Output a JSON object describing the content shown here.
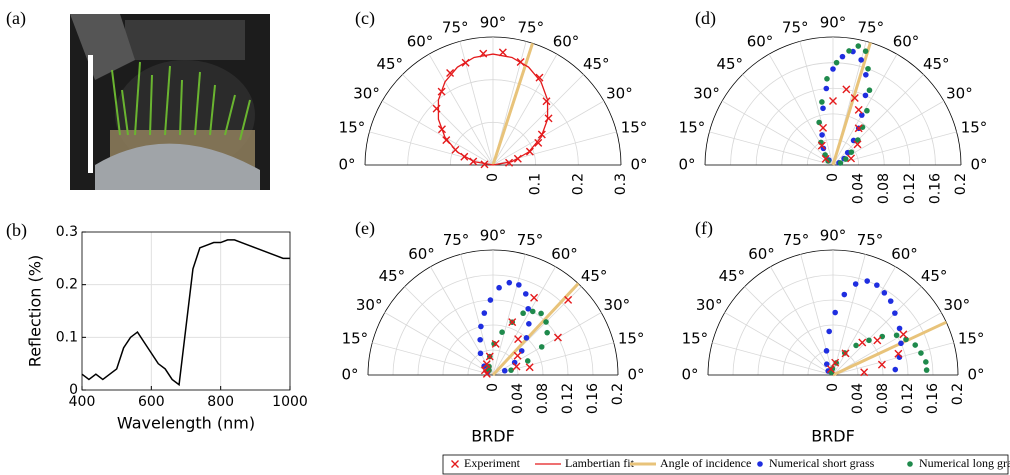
{
  "figure_label_a": "(a)",
  "legend": [
    {
      "name": "Experiment",
      "color": "#e41a1c",
      "marker": "x"
    },
    {
      "name": "Lambertian fit",
      "color": "#e41a1c",
      "marker": "line"
    },
    {
      "name": "Angle of incidence",
      "color": "#e8c37a",
      "marker": "line"
    },
    {
      "name": "Numerical short grass",
      "color": "#1f2ee0",
      "marker": "dot"
    },
    {
      "name": "Numerical long grass",
      "color": "#1f8a4c",
      "marker": "dot"
    }
  ],
  "chart_data": [
    {
      "type": "line",
      "label": "(b)",
      "x_label": "Wavelength (nm)",
      "y_label": "Reflection (%)",
      "x": [
        400,
        420,
        440,
        460,
        480,
        500,
        520,
        540,
        560,
        580,
        600,
        620,
        640,
        660,
        680,
        700,
        720,
        740,
        760,
        780,
        800,
        820,
        840,
        860,
        880,
        900,
        920,
        940,
        960,
        980,
        1000
      ],
      "values": [
        0.03,
        0.02,
        0.03,
        0.02,
        0.03,
        0.04,
        0.08,
        0.1,
        0.11,
        0.09,
        0.07,
        0.05,
        0.04,
        0.02,
        0.01,
        0.12,
        0.23,
        0.27,
        0.275,
        0.28,
        0.28,
        0.285,
        0.285,
        0.28,
        0.275,
        0.27,
        0.265,
        0.26,
        0.255,
        0.25,
        0.25
      ],
      "color": "#000000",
      "xlim": [
        400,
        1000
      ],
      "ylim": [
        0,
        0.3
      ],
      "xticks": [
        400,
        600,
        800,
        1000
      ],
      "yticks": [
        0,
        0.1,
        0.2,
        0.3
      ],
      "grid": true
    },
    {
      "type": "polar",
      "label": "(c)",
      "rlim": [
        0,
        0.3
      ],
      "rticks": [
        0,
        0.1,
        0.2,
        0.3
      ],
      "incidence_angle": 72,
      "incidence_color": "#e8c37a",
      "angle_ticks": [
        {
          "value": 0,
          "label": "0°"
        },
        {
          "value": 15,
          "label": "15°"
        },
        {
          "value": 30,
          "label": "30°"
        },
        {
          "value": 45,
          "label": "45°"
        },
        {
          "value": 60,
          "label": "60°"
        },
        {
          "value": 75,
          "label": "75°"
        },
        {
          "value": 90,
          "label": "90°"
        },
        {
          "value": 105,
          "label": "75°"
        },
        {
          "value": 120,
          "label": "60°"
        },
        {
          "value": 135,
          "label": "45°"
        },
        {
          "value": 150,
          "label": "30°"
        },
        {
          "value": 165,
          "label": "15°"
        },
        {
          "value": 180,
          "label": "0°"
        }
      ],
      "series": [
        {
          "name": "Lambertian fit",
          "color": "#e41a1c",
          "marker": "line",
          "theta": [
            0,
            10,
            20,
            30,
            40,
            50,
            60,
            70,
            80,
            90,
            100,
            110,
            120,
            130,
            140,
            150,
            160,
            170,
            180
          ],
          "r": [
            0,
            0.045,
            0.089,
            0.13,
            0.167,
            0.199,
            0.225,
            0.244,
            0.256,
            0.26,
            0.256,
            0.244,
            0.225,
            0.199,
            0.167,
            0.13,
            0.089,
            0.045,
            0
          ]
        },
        {
          "name": "Experiment",
          "color": "#e41a1c",
          "marker": "x",
          "theta": [
            8,
            14,
            20,
            26,
            32,
            40,
            50,
            62,
            75,
            85,
            95,
            105,
            115,
            125,
            135,
            145,
            152,
            158,
            164,
            170,
            176
          ],
          "r": [
            0.038,
            0.06,
            0.092,
            0.118,
            0.135,
            0.17,
            0.195,
            0.232,
            0.25,
            0.265,
            0.262,
            0.248,
            0.238,
            0.21,
            0.187,
            0.146,
            0.124,
            0.095,
            0.07,
            0.047,
            0.02
          ]
        }
      ]
    },
    {
      "type": "polar",
      "label": "(d)",
      "rlim": [
        0,
        0.2
      ],
      "rticks": [
        0,
        0.04,
        0.08,
        0.12,
        0.16,
        0.2
      ],
      "incidence_angle": 73,
      "incidence_color": "#e8c37a",
      "angle_ticks": [
        {
          "value": 0,
          "label": "0°"
        },
        {
          "value": 15,
          "label": "15°"
        },
        {
          "value": 30,
          "label": "30°"
        },
        {
          "value": 45,
          "label": "45°"
        },
        {
          "value": 60,
          "label": "60°"
        },
        {
          "value": 75,
          "label": "75°"
        },
        {
          "value": 90,
          "label": "90°"
        },
        {
          "value": 105,
          "label": "75°"
        },
        {
          "value": 120,
          "label": "60°"
        },
        {
          "value": 135,
          "label": "45°"
        },
        {
          "value": 150,
          "label": "30°"
        },
        {
          "value": 165,
          "label": "15°"
        },
        {
          "value": 180,
          "label": "0°"
        }
      ],
      "series": [
        {
          "name": "Numerical short grass",
          "color": "#1f2ee0",
          "marker": "dot",
          "theta": [
            20,
            30,
            40,
            50,
            55,
            60,
            65,
            70,
            75,
            80,
            85,
            90,
            95,
            100,
            110,
            120,
            130
          ],
          "r": [
            0.01,
            0.02,
            0.03,
            0.05,
            0.07,
            0.09,
            0.12,
            0.15,
            0.17,
            0.18,
            0.17,
            0.15,
            0.12,
            0.09,
            0.05,
            0.03,
            0.01
          ]
        },
        {
          "name": "Numerical long grass",
          "color": "#1f8a4c",
          "marker": "dot",
          "theta": [
            15,
            25,
            35,
            45,
            52,
            58,
            64,
            70,
            74,
            78,
            82,
            88,
            94,
            100,
            108,
            118,
            128,
            140
          ],
          "r": [
            0.012,
            0.022,
            0.035,
            0.055,
            0.075,
            0.1,
            0.13,
            0.16,
            0.185,
            0.19,
            0.18,
            0.16,
            0.135,
            0.1,
            0.07,
            0.04,
            0.02,
            0.01
          ]
        },
        {
          "name": "Experiment",
          "color": "#e41a1c",
          "marker": "x",
          "theta": [
            20,
            40,
            55,
            65,
            72,
            80,
            90,
            105,
            120,
            140
          ],
          "r": [
            0.03,
            0.05,
            0.07,
            0.095,
            0.11,
            0.12,
            0.1,
            0.06,
            0.035,
            0.015
          ]
        }
      ]
    },
    {
      "type": "polar",
      "label": "(e)",
      "rlim": [
        0,
        0.2
      ],
      "rticks": [
        0,
        0.04,
        0.08,
        0.12,
        0.16,
        0.2
      ],
      "r_label": "BRDF",
      "incidence_angle": 47,
      "incidence_color": "#e8c37a",
      "angle_ticks": [
        {
          "value": 0,
          "label": "0°"
        },
        {
          "value": 15,
          "label": "15°"
        },
        {
          "value": 30,
          "label": "30°"
        },
        {
          "value": 45,
          "label": "45°"
        },
        {
          "value": 60,
          "label": "60°"
        },
        {
          "value": 75,
          "label": "75°"
        },
        {
          "value": 90,
          "label": "90°"
        },
        {
          "value": 105,
          "label": "75°"
        },
        {
          "value": 120,
          "label": "60°"
        },
        {
          "value": 135,
          "label": "45°"
        },
        {
          "value": 150,
          "label": "30°"
        },
        {
          "value": 165,
          "label": "15°"
        },
        {
          "value": 180,
          "label": "0°"
        }
      ],
      "series": [
        {
          "name": "Numerical short grass",
          "color": "#1f2ee0",
          "marker": "dot",
          "theta": [
            20,
            30,
            40,
            48,
            55,
            62,
            68,
            74,
            80,
            86,
            92,
            98,
            104,
            110,
            120,
            135,
            150
          ],
          "r": [
            0.02,
            0.04,
            0.06,
            0.08,
            0.1,
            0.12,
            0.14,
            0.15,
            0.15,
            0.14,
            0.12,
            0.1,
            0.08,
            0.06,
            0.04,
            0.02,
            0.01
          ]
        },
        {
          "name": "Numerical long grass",
          "color": "#1f8a4c",
          "marker": "dot",
          "theta": [
            15,
            22,
            30,
            38,
            45,
            52,
            58,
            64,
            70,
            78,
            88,
            100,
            115,
            130
          ],
          "r": [
            0.03,
            0.06,
            0.09,
            0.11,
            0.12,
            0.125,
            0.12,
            0.11,
            0.09,
            0.07,
            0.05,
            0.03,
            0.015,
            0.01
          ]
        },
        {
          "name": "Experiment",
          "color": "#e41a1c",
          "marker": "x",
          "theta": [
            12,
            20,
            30,
            38,
            45,
            55,
            62,
            70,
            85,
            100,
            120,
            150,
            170
          ],
          "r": [
            0.06,
            0.04,
            0.12,
            0.05,
            0.17,
            0.07,
            0.14,
            0.09,
            0.05,
            0.03,
            0.02,
            0.015,
            0.01
          ]
        }
      ]
    },
    {
      "type": "polar",
      "label": "(f)",
      "rlim": [
        0,
        0.2
      ],
      "rticks": [
        0,
        0.04,
        0.08,
        0.12,
        0.16,
        0.2
      ],
      "r_label": "BRDF",
      "incidence_angle": 25,
      "incidence_color": "#e8c37a",
      "angle_ticks": [
        {
          "value": 0,
          "label": "0°"
        },
        {
          "value": 15,
          "label": "15°"
        },
        {
          "value": 30,
          "label": "30°"
        },
        {
          "value": 45,
          "label": "45°"
        },
        {
          "value": 60,
          "label": "60°"
        },
        {
          "value": 75,
          "label": "75°"
        },
        {
          "value": 90,
          "label": "90°"
        },
        {
          "value": 105,
          "label": "75°"
        },
        {
          "value": 120,
          "label": "60°"
        },
        {
          "value": 135,
          "label": "45°"
        },
        {
          "value": 150,
          "label": "30°"
        },
        {
          "value": 165,
          "label": "15°"
        },
        {
          "value": 180,
          "label": "0°"
        }
      ],
      "series": [
        {
          "name": "Numerical short grass",
          "color": "#1f2ee0",
          "marker": "dot",
          "theta": [
            5,
            15,
            25,
            35,
            45,
            52,
            58,
            64,
            70,
            76,
            82,
            88,
            95,
            105,
            120,
            140
          ],
          "r": [
            0.1,
            0.11,
            0.12,
            0.13,
            0.14,
            0.15,
            0.155,
            0.16,
            0.16,
            0.15,
            0.13,
            0.1,
            0.07,
            0.04,
            0.02,
            0.01
          ]
        },
        {
          "name": "Numerical long grass",
          "color": "#1f8a4c",
          "marker": "dot",
          "theta": [
            3,
            8,
            14,
            20,
            26,
            32,
            38,
            44,
            52,
            62,
            75,
            95,
            120
          ],
          "r": [
            0.15,
            0.15,
            0.145,
            0.14,
            0.13,
            0.12,
            0.1,
            0.08,
            0.06,
            0.04,
            0.02,
            0.01,
            0.005
          ]
        },
        {
          "name": "Experiment",
          "color": "#e41a1c",
          "marker": "x",
          "theta": [
            5,
            12,
            18,
            30,
            38,
            48,
            60,
            80,
            110
          ],
          "r": [
            0.05,
            0.08,
            0.11,
            0.13,
            0.09,
            0.07,
            0.04,
            0.02,
            0.01
          ]
        }
      ]
    }
  ]
}
